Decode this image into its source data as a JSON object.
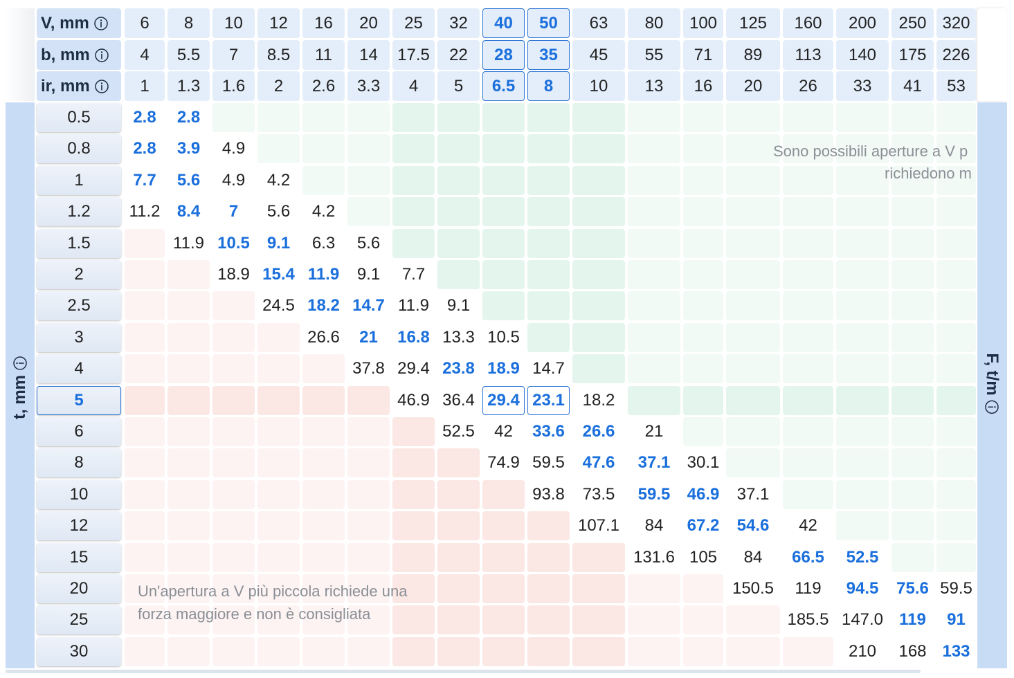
{
  "header": {
    "rows": [
      {
        "label": "V, mm",
        "values": [
          "6",
          "8",
          "10",
          "12",
          "16",
          "20",
          "25",
          "32",
          "40",
          "50",
          "63",
          "80",
          "100",
          "125",
          "160",
          "200",
          "250",
          "320"
        ]
      },
      {
        "label": "b, mm",
        "values": [
          "4",
          "5.5",
          "7",
          "8.5",
          "11",
          "14",
          "17.5",
          "22",
          "28",
          "35",
          "45",
          "55",
          "71",
          "89",
          "113",
          "140",
          "175",
          "226"
        ]
      },
      {
        "label": "ir, mm",
        "values": [
          "1",
          "1.3",
          "1.6",
          "2",
          "2.6",
          "3.3",
          "4",
          "5",
          "6.5",
          "8",
          "10",
          "13",
          "16",
          "20",
          "26",
          "33",
          "41",
          "53"
        ]
      }
    ]
  },
  "selected_columns": [
    8,
    9
  ],
  "selected_row": 9,
  "rows": [
    {
      "t": "0.5",
      "cells": [
        "2.8",
        "2.8",
        null,
        null,
        null,
        null,
        null,
        null,
        null,
        null,
        null,
        null,
        null,
        null,
        null,
        null,
        null,
        null
      ],
      "bold": [
        0,
        1
      ]
    },
    {
      "t": "0.8",
      "cells": [
        "2.8",
        "3.9",
        "4.9",
        null,
        null,
        null,
        null,
        null,
        null,
        null,
        null,
        null,
        null,
        null,
        null,
        null,
        null,
        null
      ],
      "bold": [
        0,
        1
      ]
    },
    {
      "t": "1",
      "cells": [
        "7.7",
        "5.6",
        "4.9",
        "4.2",
        null,
        null,
        null,
        null,
        null,
        null,
        null,
        null,
        null,
        null,
        null,
        null,
        null,
        null
      ],
      "bold": [
        0,
        1
      ]
    },
    {
      "t": "1.2",
      "cells": [
        "11.2",
        "8.4",
        "7",
        "5.6",
        "4.2",
        null,
        null,
        null,
        null,
        null,
        null,
        null,
        null,
        null,
        null,
        null,
        null,
        null
      ],
      "bold": [
        1,
        2
      ]
    },
    {
      "t": "1.5",
      "cells": [
        null,
        "11.9",
        "10.5",
        "9.1",
        "6.3",
        "5.6",
        null,
        null,
        null,
        null,
        null,
        null,
        null,
        null,
        null,
        null,
        null,
        null
      ],
      "bold": [
        2,
        3
      ]
    },
    {
      "t": "2",
      "cells": [
        null,
        null,
        "18.9",
        "15.4",
        "11.9",
        "9.1",
        "7.7",
        null,
        null,
        null,
        null,
        null,
        null,
        null,
        null,
        null,
        null,
        null
      ],
      "bold": [
        3,
        4
      ]
    },
    {
      "t": "2.5",
      "cells": [
        null,
        null,
        null,
        "24.5",
        "18.2",
        "14.7",
        "11.9",
        "9.1",
        null,
        null,
        null,
        null,
        null,
        null,
        null,
        null,
        null,
        null
      ],
      "bold": [
        4,
        5
      ]
    },
    {
      "t": "3",
      "cells": [
        null,
        null,
        null,
        null,
        "26.6",
        "21",
        "16.8",
        "13.3",
        "10.5",
        null,
        null,
        null,
        null,
        null,
        null,
        null,
        null,
        null
      ],
      "bold": [
        5,
        6
      ]
    },
    {
      "t": "4",
      "cells": [
        null,
        null,
        null,
        null,
        null,
        "37.8",
        "29.4",
        "23.8",
        "18.9",
        "14.7",
        null,
        null,
        null,
        null,
        null,
        null,
        null,
        null
      ],
      "bold": [
        7,
        8
      ]
    },
    {
      "t": "5",
      "cells": [
        null,
        null,
        null,
        null,
        null,
        null,
        "46.9",
        "36.4",
        "29.4",
        "23.1",
        "18.2",
        null,
        null,
        null,
        null,
        null,
        null,
        null
      ],
      "bold": [
        8,
        9
      ]
    },
    {
      "t": "6",
      "cells": [
        null,
        null,
        null,
        null,
        null,
        null,
        null,
        "52.5",
        "42",
        "33.6",
        "26.6",
        "21",
        null,
        null,
        null,
        null,
        null,
        null
      ],
      "bold": [
        9,
        10
      ]
    },
    {
      "t": "8",
      "cells": [
        null,
        null,
        null,
        null,
        null,
        null,
        null,
        null,
        "74.9",
        "59.5",
        "47.6",
        "37.1",
        "30.1",
        null,
        null,
        null,
        null,
        null
      ],
      "bold": [
        10,
        11
      ]
    },
    {
      "t": "10",
      "cells": [
        null,
        null,
        null,
        null,
        null,
        null,
        null,
        null,
        null,
        "93.8",
        "73.5",
        "59.5",
        "46.9",
        "37.1",
        null,
        null,
        null,
        null
      ],
      "bold": [
        11,
        12
      ]
    },
    {
      "t": "12",
      "cells": [
        null,
        null,
        null,
        null,
        null,
        null,
        null,
        null,
        null,
        null,
        "107.1",
        "84",
        "67.2",
        "54.6",
        "42",
        null,
        null,
        null
      ],
      "bold": [
        12,
        13
      ]
    },
    {
      "t": "15",
      "cells": [
        null,
        null,
        null,
        null,
        null,
        null,
        null,
        null,
        null,
        null,
        null,
        "131.6",
        "105",
        "84",
        "66.5",
        "52.5",
        null,
        null
      ],
      "bold": [
        14,
        15
      ]
    },
    {
      "t": "20",
      "cells": [
        null,
        null,
        null,
        null,
        null,
        null,
        null,
        null,
        null,
        null,
        null,
        null,
        null,
        "150.5",
        "119",
        "94.5",
        "75.6",
        "59.5"
      ],
      "bold": [
        15,
        16
      ]
    },
    {
      "t": "25",
      "cells": [
        null,
        null,
        null,
        null,
        null,
        null,
        null,
        null,
        null,
        null,
        null,
        null,
        null,
        null,
        "185.5",
        "147.0",
        "119",
        "91"
      ],
      "bold": [
        16,
        17
      ]
    },
    {
      "t": "30",
      "cells": [
        null,
        null,
        null,
        null,
        null,
        null,
        null,
        null,
        null,
        null,
        null,
        null,
        null,
        null,
        null,
        "210",
        "168",
        "133"
      ],
      "bold": [
        17
      ]
    }
  ],
  "axis_labels": {
    "left": "t, mm",
    "right": "F, t/m"
  },
  "notes": {
    "upper": [
      "Sono possibili aperture a V p",
      "richiedono m"
    ],
    "lower": [
      "Un'apertura a V più piccola richiede una",
      "forza maggiore e non è consigliata"
    ]
  }
}
